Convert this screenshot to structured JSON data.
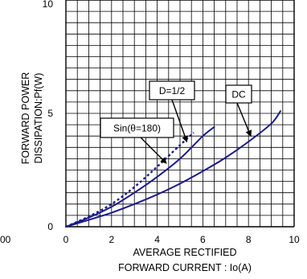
{
  "chart_data": {
    "type": "line",
    "xlabel_line1": "AVERAGE RECTIFIED",
    "xlabel_line2": "FORWARD CURRENT : Io(A)",
    "ylabel_line1": "FORWARD POWER",
    "ylabel_line2": "DISSIPATION:Pf(W)",
    "xlim": [
      0,
      10
    ],
    "ylim": [
      0,
      10
    ],
    "x_ticks": [
      0,
      2,
      4,
      6,
      8,
      10
    ],
    "y_ticks": [
      0,
      5,
      10
    ],
    "x_tick_labels": [
      "0",
      "2",
      "4",
      "6",
      "8",
      "10"
    ],
    "y_tick_labels": [
      "0",
      "5",
      "10"
    ],
    "grid": true,
    "stray_label": "00",
    "colors": {
      "curve": "#1a1a8c",
      "grid": "#000000"
    },
    "series": [
      {
        "name": "Sin(θ=180)",
        "style": "solid",
        "x": [
          0,
          1,
          2,
          3,
          4,
          5,
          6,
          6.5
        ],
        "y": [
          0,
          0.4,
          0.88,
          1.5,
          2.2,
          3.0,
          4.0,
          4.4
        ]
      },
      {
        "name": "D=1/2",
        "style": "dotted",
        "x": [
          0,
          1,
          2,
          3,
          4,
          5,
          5.6
        ],
        "y": [
          0,
          0.45,
          1.0,
          1.75,
          2.65,
          3.6,
          4.15
        ]
      },
      {
        "name": "DC",
        "style": "solid",
        "x": [
          0,
          1,
          2,
          3,
          4,
          5,
          6,
          7,
          8,
          9,
          9.4
        ],
        "y": [
          0,
          0.3,
          0.62,
          1.0,
          1.42,
          1.9,
          2.45,
          3.05,
          3.75,
          4.55,
          5.1
        ]
      }
    ],
    "annotations": [
      {
        "text": "D=1/2",
        "target_series": "D=1/2",
        "target_xy": [
          5.3,
          3.75
        ]
      },
      {
        "text": "DC",
        "target_series": "DC",
        "target_xy": [
          8.1,
          4.0
        ]
      },
      {
        "text": "Sin(θ=180)",
        "target_series": "Sin(θ=180)",
        "target_xy": [
          4.4,
          2.8
        ]
      }
    ]
  }
}
